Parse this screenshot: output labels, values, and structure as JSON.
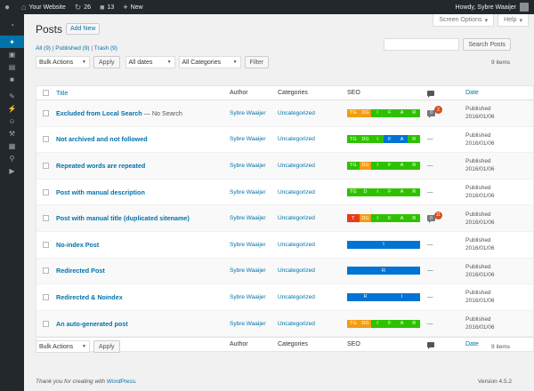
{
  "adminbar": {
    "site_name": "Your Website",
    "updates_count": "26",
    "comments_count": "13",
    "new_label": "New",
    "howdy": "Howdy, Sybre Waaijer"
  },
  "screen_options": "Screen Options",
  "help": "Help",
  "page_title": "Posts",
  "add_new": "Add New",
  "views": {
    "all": "All (9)",
    "published": "Published (9)",
    "trash": "Trash (9)"
  },
  "search": {
    "button": "Search Posts",
    "placeholder": ""
  },
  "filters": {
    "bulk_actions": "Bulk Actions",
    "apply": "Apply",
    "dates": "All dates",
    "categories": "All Categories",
    "filter": "Filter"
  },
  "items_count": "9 items",
  "columns": {
    "title": "Title",
    "author": "Author",
    "categories": "Categories",
    "seo": "SEO",
    "date": "Date"
  },
  "seo_colors": {
    "green": "#2ec100",
    "orange": "#f39c12",
    "blue": "#0074d4",
    "red": "#e83c17"
  },
  "rows": [
    {
      "title": "Excluded from Local Search",
      "state": "— No Search",
      "author": "Sybre Waaijer",
      "category": "Uncategorized",
      "seo": [
        {
          "l": "TG",
          "c": "orange"
        },
        {
          "l": "DG",
          "c": "orange"
        },
        {
          "l": "I",
          "c": "green"
        },
        {
          "l": "F",
          "c": "green"
        },
        {
          "l": "A",
          "c": "green"
        },
        {
          "l": "R",
          "c": "green"
        }
      ],
      "comments": "0",
      "pending": "2",
      "date_status": "Published",
      "date": "2016/01/06"
    },
    {
      "title": "Not archived and not followed",
      "state": "",
      "author": "Sybre Waaijer",
      "category": "Uncategorized",
      "seo": [
        {
          "l": "TG",
          "c": "green"
        },
        {
          "l": "DG",
          "c": "green"
        },
        {
          "l": "I",
          "c": "green"
        },
        {
          "l": "F",
          "c": "blue"
        },
        {
          "l": "A",
          "c": "blue"
        },
        {
          "l": "R",
          "c": "green"
        }
      ],
      "comments": "—",
      "pending": "",
      "date_status": "Published",
      "date": "2016/01/06"
    },
    {
      "title": "Repeated words are repeated",
      "state": "",
      "author": "Sybre Waaijer",
      "category": "Uncategorized",
      "seo": [
        {
          "l": "TG",
          "c": "green"
        },
        {
          "l": "DG",
          "c": "orange"
        },
        {
          "l": "I",
          "c": "green"
        },
        {
          "l": "F",
          "c": "green"
        },
        {
          "l": "A",
          "c": "green"
        },
        {
          "l": "R",
          "c": "green"
        }
      ],
      "comments": "—",
      "pending": "",
      "date_status": "Published",
      "date": "2016/01/06"
    },
    {
      "title": "Post with manual description",
      "state": "",
      "author": "Sybre Waaijer",
      "category": "Uncategorized",
      "seo": [
        {
          "l": "TG",
          "c": "green"
        },
        {
          "l": "D",
          "c": "green"
        },
        {
          "l": "I",
          "c": "green"
        },
        {
          "l": "F",
          "c": "green"
        },
        {
          "l": "A",
          "c": "green"
        },
        {
          "l": "R",
          "c": "green"
        }
      ],
      "comments": "—",
      "pending": "",
      "date_status": "Published",
      "date": "2016/01/06"
    },
    {
      "title": "Post with manual title (duplicated sitename)",
      "state": "",
      "author": "Sybre Waaijer",
      "category": "Uncategorized",
      "seo": [
        {
          "l": "T",
          "c": "red"
        },
        {
          "l": "DG",
          "c": "orange"
        },
        {
          "l": "I",
          "c": "green"
        },
        {
          "l": "F",
          "c": "green"
        },
        {
          "l": "A",
          "c": "green"
        },
        {
          "l": "R",
          "c": "green"
        }
      ],
      "comments": "0",
      "pending": "11",
      "date_status": "Published",
      "date": "2016/01/06"
    },
    {
      "title": "No-index Post",
      "state": "",
      "author": "Sybre Waaijer",
      "category": "Uncategorized",
      "seo": [
        {
          "l": "I",
          "c": "blue"
        }
      ],
      "comments": "—",
      "pending": "",
      "date_status": "Published",
      "date": "2016/01/06"
    },
    {
      "title": "Redirected Post",
      "state": "",
      "author": "Sybre Waaijer",
      "category": "Uncategorized",
      "seo": [
        {
          "l": "R",
          "c": "blue"
        }
      ],
      "comments": "—",
      "pending": "",
      "date_status": "Published",
      "date": "2016/01/06"
    },
    {
      "title": "Redirected & Noindex",
      "state": "",
      "author": "Sybre Waaijer",
      "category": "Uncategorized",
      "seo": [
        {
          "l": "R",
          "c": "blue"
        },
        {
          "l": "I",
          "c": "blue"
        }
      ],
      "comments": "—",
      "pending": "",
      "date_status": "Published",
      "date": "2016/01/06"
    },
    {
      "title": "An auto-generated post",
      "state": "",
      "author": "Sybre Waaijer",
      "category": "Uncategorized",
      "seo": [
        {
          "l": "TG",
          "c": "orange"
        },
        {
          "l": "DG",
          "c": "orange"
        },
        {
          "l": "I",
          "c": "green"
        },
        {
          "l": "F",
          "c": "green"
        },
        {
          "l": "A",
          "c": "green"
        },
        {
          "l": "R",
          "c": "green"
        }
      ],
      "comments": "—",
      "pending": "",
      "date_status": "Published",
      "date": "2016/01/06"
    }
  ],
  "footer": {
    "thanks": "Thank you for creating with",
    "wp": "WordPress",
    "dot": ".",
    "version": "Version 4.5.2"
  }
}
